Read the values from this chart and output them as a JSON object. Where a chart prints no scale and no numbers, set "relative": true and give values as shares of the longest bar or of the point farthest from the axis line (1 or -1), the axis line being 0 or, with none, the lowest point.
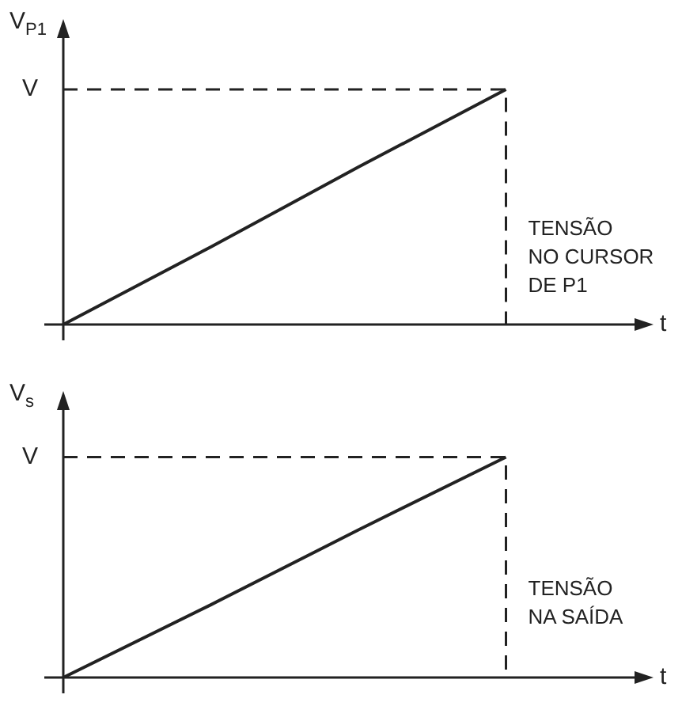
{
  "chart_data": [
    {
      "type": "line",
      "relative": true,
      "ylabel": "V$_{P1}$",
      "xlabel": "t",
      "categories": [
        null,
        null,
        null,
        null,
        null
      ],
      "values": [
        0,
        0.33,
        0.67,
        1,
        null
      ],
      "color": "#222222",
      "marker": "none",
      "line_style": "solid",
      "grid": false,
      "legend": false,
      "tick_labels": false,
      "ref_lines": [
        {
          "axis": "y",
          "value": 1,
          "label": "V",
          "line_style": "dashed",
          "color": "#222222"
        }
      ],
      "annotations": [
        "TENSÃO\nNO CURSOR\nDE P1"
      ]
    },
    {
      "type": "line",
      "relative": true,
      "ylabel": "V$_{s}$",
      "xlabel": "t",
      "categories": [
        null,
        null,
        null,
        null,
        null
      ],
      "values": [
        0,
        0.33,
        0.67,
        1,
        null
      ],
      "color": "#222222",
      "marker": "none",
      "line_style": "solid",
      "grid": false,
      "legend": false,
      "tick_labels": false,
      "ref_lines": [
        {
          "axis": "y",
          "value": 1,
          "label": "V",
          "line_style": "dashed",
          "color": "#222222"
        }
      ],
      "annotations": [
        "TENSÃO\nNA SAÍDA"
      ]
    }
  ]
}
